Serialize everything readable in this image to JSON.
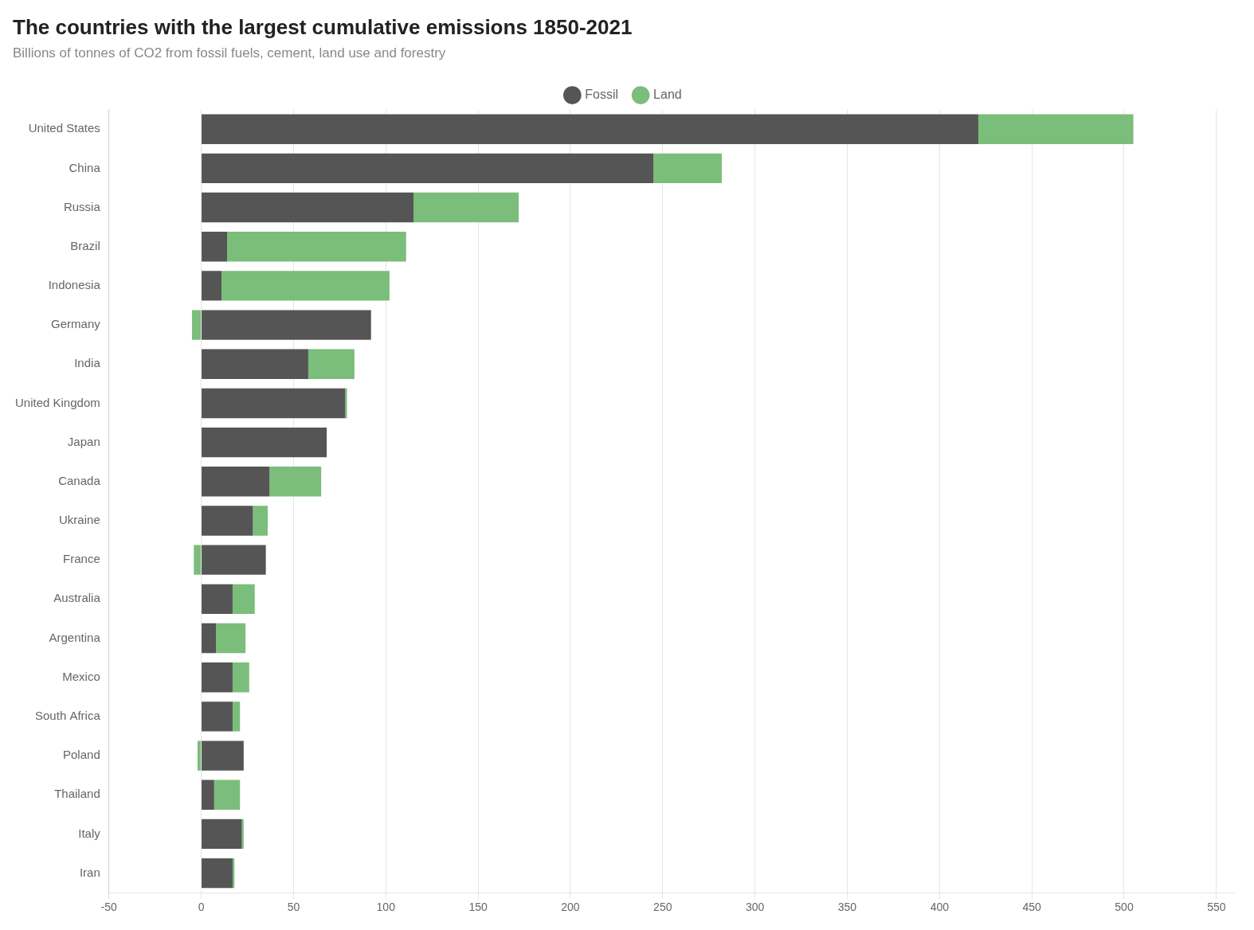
{
  "chart_data": {
    "type": "bar",
    "orientation": "horizontal",
    "stacked": true,
    "title": "The countries with the largest cumulative emissions 1850-2021",
    "subtitle": "Billions of tonnes of CO2 from fossil fuels, cement, land use and forestry",
    "categories": [
      "United States",
      "China",
      "Russia",
      "Brazil",
      "Indonesia",
      "Germany",
      "India",
      "United Kingdom",
      "Japan",
      "Canada",
      "Ukraine",
      "France",
      "Australia",
      "Argentina",
      "Mexico",
      "South Africa",
      "Poland",
      "Thailand",
      "Italy",
      "Iran"
    ],
    "series": [
      {
        "name": "Fossil",
        "color": "#555555",
        "values": [
          421,
          245,
          115,
          14,
          11,
          92,
          58,
          78,
          68,
          37,
          28,
          35,
          17,
          8,
          17,
          17,
          23,
          7,
          22,
          17
        ]
      },
      {
        "name": "Land",
        "color": "#7BBD7B",
        "values": [
          84,
          37,
          57,
          97,
          91,
          -5,
          25,
          1,
          0,
          28,
          8,
          -4,
          12,
          16,
          9,
          4,
          -2,
          14,
          1,
          1
        ]
      }
    ],
    "xlim": [
      -50,
      560
    ],
    "xticks": [
      -50,
      0,
      50,
      100,
      150,
      200,
      250,
      300,
      350,
      400,
      450,
      500,
      550
    ],
    "grid": true,
    "legend": "top"
  }
}
